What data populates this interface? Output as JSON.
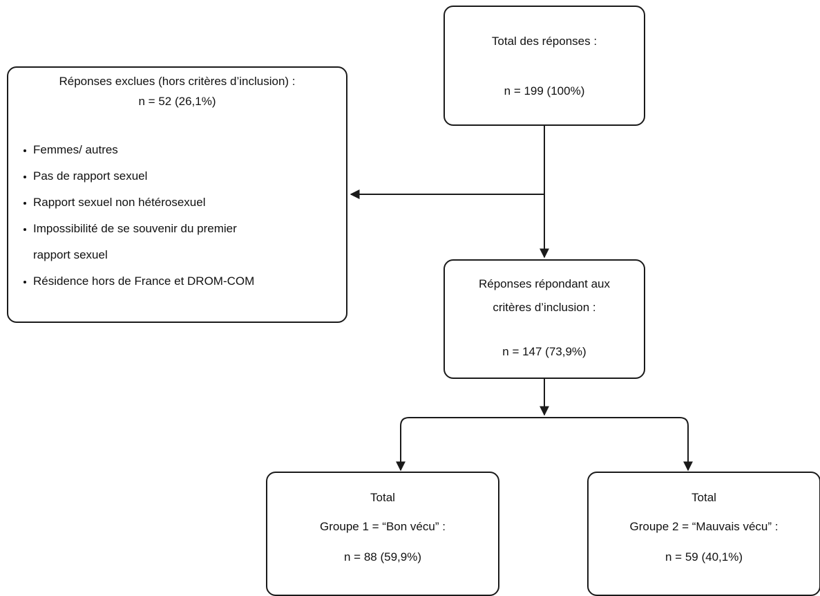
{
  "total": {
    "title": "Total des réponses :",
    "n": "n = 199 (100%)"
  },
  "excluded": {
    "title": "Réponses exclues (hors critères d’inclusion) :",
    "n": "n = 52 (26,1%)",
    "criteria": [
      {
        "line1": "Femmes/ autres",
        "line2": ""
      },
      {
        "line1": "Pas de rapport sexuel",
        "line2": ""
      },
      {
        "line1": "Rapport sexuel non hétérosexuel",
        "line2": ""
      },
      {
        "line1": "Impossibilité de se souvenir du premier",
        "line2": "rapport sexuel"
      },
      {
        "line1": "Résidence hors de France et DROM-COM",
        "line2": ""
      }
    ]
  },
  "included": {
    "title_line1": "Réponses répondant aux",
    "title_line2": "critères d’inclusion :",
    "n": "n = 147 (73,9%)"
  },
  "group1": {
    "total": "Total",
    "label": "Groupe 1 = “Bon vécu” :",
    "n": "n = 88 (59,9%)"
  },
  "group2": {
    "total": "Total",
    "label": "Groupe 2 = “Mauvais vécu” :",
    "n": "n = 59 (40,1%)"
  },
  "colors": {
    "stroke": "#1a1a1a",
    "text": "#111111",
    "background": "#ffffff"
  }
}
